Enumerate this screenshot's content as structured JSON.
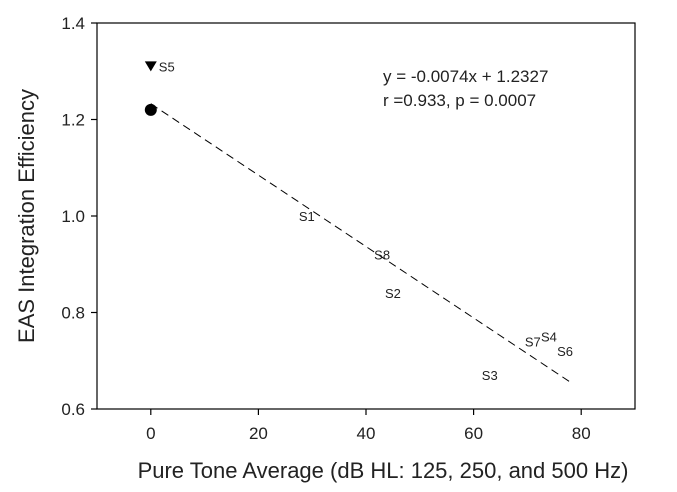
{
  "chart_data": {
    "type": "scatter",
    "xlabel": "Pure Tone Average (dB HL: 125, 250, and 500 Hz)",
    "ylabel": "EAS Integration Efficiency",
    "xlim": [
      -10,
      90
    ],
    "ylim": [
      0.6,
      1.4
    ],
    "xticks": [
      0,
      20,
      40,
      60,
      80
    ],
    "yticks": [
      0.6,
      0.8,
      1.0,
      1.2,
      1.4
    ],
    "xtick_labels": [
      "0",
      "20",
      "40",
      "60",
      "80"
    ],
    "ytick_labels": [
      "0.6",
      "0.8",
      "1.0",
      "1.2",
      "1.4"
    ],
    "grid": false,
    "points": [
      {
        "label": "S1",
        "x": 29,
        "y": 1.0
      },
      {
        "label": "S8",
        "x": 43,
        "y": 0.92
      },
      {
        "label": "S2",
        "x": 45,
        "y": 0.84
      },
      {
        "label": "S3",
        "x": 63,
        "y": 0.67
      },
      {
        "label": "S7",
        "x": 71,
        "y": 0.74
      },
      {
        "label": "S4",
        "x": 74,
        "y": 0.75
      },
      {
        "label": "S6",
        "x": 77,
        "y": 0.72
      }
    ],
    "markers": [
      {
        "shape": "circle",
        "x": 0,
        "y": 1.22,
        "label": ""
      },
      {
        "shape": "triangle-down",
        "x": 0,
        "y": 1.31,
        "label": "S5"
      }
    ],
    "regression": {
      "slope": -0.0074,
      "intercept": 1.2327,
      "x_range": [
        0,
        78
      ],
      "style": "dashed"
    },
    "annotation": {
      "line1": "y = -0.0074x + 1.2327",
      "line2": "r =0.933, p = 0.0007"
    }
  }
}
